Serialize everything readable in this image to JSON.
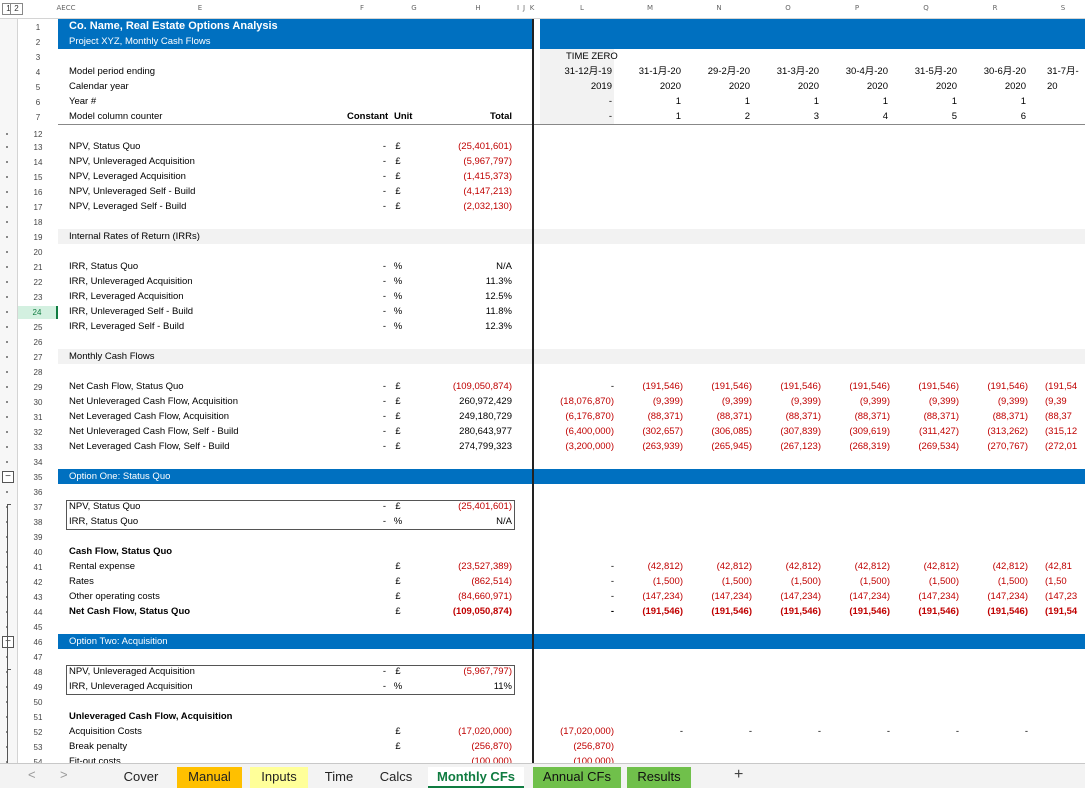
{
  "header": {
    "company": "Co. Name, Real Estate Options Analysis",
    "subtitle": "Project XYZ, Monthly Cash Flows"
  },
  "columns": [
    "AECC",
    "E",
    "F",
    "G",
    "H",
    "I",
    "J",
    "K",
    "L",
    "M",
    "N",
    "O",
    "P",
    "Q",
    "R",
    "S"
  ],
  "outline_levels": [
    "1",
    "2"
  ],
  "timeline": {
    "labels": [
      "Model period ending",
      "Calendar year",
      "Year #",
      "Model column counter"
    ],
    "time_zero": "TIME ZERO",
    "periods": [
      {
        "date": "31-12月-19",
        "year": "2019",
        "yearnum": "-",
        "counter": "-"
      },
      {
        "date": "31-1月-20",
        "year": "2020",
        "yearnum": "1",
        "counter": "1"
      },
      {
        "date": "29-2月-20",
        "year": "2020",
        "yearnum": "1",
        "counter": "2"
      },
      {
        "date": "31-3月-20",
        "year": "2020",
        "yearnum": "1",
        "counter": "3"
      },
      {
        "date": "30-4月-20",
        "year": "2020",
        "yearnum": "1",
        "counter": "4"
      },
      {
        "date": "31-5月-20",
        "year": "2020",
        "yearnum": "1",
        "counter": "5"
      },
      {
        "date": "30-6月-20",
        "year": "2020",
        "yearnum": "1",
        "counter": "6"
      },
      {
        "date": "31-7月-",
        "year": "20",
        "yearnum": "",
        "counter": ""
      }
    ],
    "col_headers": {
      "constant": "Constant",
      "unit": "Unit",
      "total": "Total"
    }
  },
  "rows": [
    {
      "n": "1"
    },
    {
      "n": "2"
    },
    {
      "n": "3"
    },
    {
      "n": "4"
    },
    {
      "n": "5"
    },
    {
      "n": "6"
    },
    {
      "n": "7"
    },
    {
      "n": "12"
    },
    {
      "n": "13",
      "label": "NPV, Status Quo",
      "const": "-",
      "unit": "£",
      "total": "(25,401,601)",
      "neg": true
    },
    {
      "n": "14",
      "label": "NPV, Unleveraged Acquisition",
      "const": "-",
      "unit": "£",
      "total": "(5,967,797)",
      "neg": true
    },
    {
      "n": "15",
      "label": "NPV, Leveraged Acquisition",
      "const": "-",
      "unit": "£",
      "total": "(1,415,373)",
      "neg": true
    },
    {
      "n": "16",
      "label": "NPV, Unleveraged Self - Build",
      "const": "-",
      "unit": "£",
      "total": "(4,147,213)",
      "neg": true
    },
    {
      "n": "17",
      "label": "NPV, Leveraged Self - Build",
      "const": "-",
      "unit": "£",
      "total": "(2,032,130)",
      "neg": true
    },
    {
      "n": "18"
    },
    {
      "n": "19",
      "label": "Internal Rates of Return (IRRs)",
      "section": "grey"
    },
    {
      "n": "20"
    },
    {
      "n": "21",
      "label": "IRR, Status Quo",
      "const": "-",
      "unit": "%",
      "total": "N/A"
    },
    {
      "n": "22",
      "label": "IRR, Unleveraged Acquisition",
      "const": "-",
      "unit": "%",
      "total": "11.3%"
    },
    {
      "n": "23",
      "label": "IRR, Leveraged Acquisition",
      "const": "-",
      "unit": "%",
      "total": "12.5%"
    },
    {
      "n": "24",
      "label": "IRR, Unleveraged Self - Build",
      "const": "-",
      "unit": "%",
      "total": "11.8%",
      "selected": true
    },
    {
      "n": "25",
      "label": "IRR, Leveraged Self - Build",
      "const": "-",
      "unit": "%",
      "total": "12.3%"
    },
    {
      "n": "26"
    },
    {
      "n": "27",
      "label": "Monthly Cash Flows",
      "section": "grey"
    },
    {
      "n": "28"
    },
    {
      "n": "29",
      "label": "Net Cash Flow, Status Quo",
      "const": "-",
      "unit": "£",
      "total": "(109,050,874)",
      "neg": true,
      "vals": [
        "-",
        "(191,546)",
        "(191,546)",
        "(191,546)",
        "(191,546)",
        "(191,546)",
        "(191,546)",
        "(191,54"
      ]
    },
    {
      "n": "30",
      "label": "Net Unleveraged Cash Flow, Acquisition",
      "const": "-",
      "unit": "£",
      "total": "260,972,429",
      "vals": [
        "(18,076,870)",
        "(9,399)",
        "(9,399)",
        "(9,399)",
        "(9,399)",
        "(9,399)",
        "(9,399)",
        "(9,39"
      ]
    },
    {
      "n": "31",
      "label": "Net Leveraged Cash Flow, Acquisition",
      "const": "-",
      "unit": "£",
      "total": "249,180,729",
      "vals": [
        "(6,176,870)",
        "(88,371)",
        "(88,371)",
        "(88,371)",
        "(88,371)",
        "(88,371)",
        "(88,371)",
        "(88,37"
      ]
    },
    {
      "n": "32",
      "label": "Net Unleveraged Cash Flow, Self - Build",
      "const": "-",
      "unit": "£",
      "total": "280,643,977",
      "vals": [
        "(6,400,000)",
        "(302,657)",
        "(306,085)",
        "(307,839)",
        "(309,619)",
        "(311,427)",
        "(313,262)",
        "(315,12"
      ]
    },
    {
      "n": "33",
      "label": "Net Leveraged Cash Flow, Self - Build",
      "const": "-",
      "unit": "£",
      "total": "274,799,323",
      "vals": [
        "(3,200,000)",
        "(263,939)",
        "(265,945)",
        "(267,123)",
        "(268,319)",
        "(269,534)",
        "(270,767)",
        "(272,01"
      ]
    },
    {
      "n": "34"
    },
    {
      "n": "35",
      "label": "Option One: Status Quo",
      "section": "blue"
    },
    {
      "n": "36"
    },
    {
      "n": "37",
      "label": "NPV, Status Quo",
      "const": "-",
      "unit": "£",
      "total": "(25,401,601)",
      "neg": true
    },
    {
      "n": "38",
      "label": "IRR, Status Quo",
      "const": "-",
      "unit": "%",
      "total": "N/A"
    },
    {
      "n": "39"
    },
    {
      "n": "40",
      "label": "Cash Flow, Status Quo",
      "bold": true
    },
    {
      "n": "41",
      "label": "Rental expense",
      "unit": "£",
      "total": "(23,527,389)",
      "neg": true,
      "vals": [
        "-",
        "(42,812)",
        "(42,812)",
        "(42,812)",
        "(42,812)",
        "(42,812)",
        "(42,812)",
        "(42,81"
      ]
    },
    {
      "n": "42",
      "label": "Rates",
      "unit": "£",
      "total": "(862,514)",
      "neg": true,
      "vals": [
        "-",
        "(1,500)",
        "(1,500)",
        "(1,500)",
        "(1,500)",
        "(1,500)",
        "(1,500)",
        "(1,50"
      ]
    },
    {
      "n": "43",
      "label": "Other operating costs",
      "unit": "£",
      "total": "(84,660,971)",
      "neg": true,
      "vals": [
        "-",
        "(147,234)",
        "(147,234)",
        "(147,234)",
        "(147,234)",
        "(147,234)",
        "(147,234)",
        "(147,23"
      ]
    },
    {
      "n": "44",
      "label": "Net Cash Flow, Status Quo",
      "unit": "£",
      "total": "(109,050,874)",
      "neg": true,
      "bold": true,
      "vals": [
        "-",
        "(191,546)",
        "(191,546)",
        "(191,546)",
        "(191,546)",
        "(191,546)",
        "(191,546)",
        "(191,54"
      ]
    },
    {
      "n": "45"
    },
    {
      "n": "46",
      "label": "Option Two: Acquisition",
      "section": "blue"
    },
    {
      "n": "47"
    },
    {
      "n": "48",
      "label": "NPV, Unleveraged Acquisition",
      "const": "-",
      "unit": "£",
      "total": "(5,967,797)",
      "neg": true
    },
    {
      "n": "49",
      "label": "IRR, Unleveraged Acquisition",
      "const": "-",
      "unit": "%",
      "total": "11%"
    },
    {
      "n": "50"
    },
    {
      "n": "51",
      "label": "Unleveraged Cash Flow, Acquisition",
      "bold": true
    },
    {
      "n": "52",
      "label": "Acquisition Costs",
      "unit": "£",
      "total": "(17,020,000)",
      "neg": true,
      "vals": [
        "(17,020,000)",
        "-",
        "-",
        "-",
        "-",
        "-",
        "-",
        ""
      ]
    },
    {
      "n": "53",
      "label": "Break penalty",
      "unit": "£",
      "total": "(256,870)",
      "neg": true,
      "vals": [
        "(256,870)",
        "",
        "",
        "",
        "",
        "",
        "",
        ""
      ]
    },
    {
      "n": "54",
      "label": "Fit-out costs",
      "unit": "",
      "total": "(100,000)",
      "neg": true,
      "vals": [
        "(100,000)",
        "",
        "",
        "",
        "",
        "",
        "",
        ""
      ]
    }
  ],
  "tabs": [
    {
      "label": "Cover",
      "style": "plain"
    },
    {
      "label": "Manual",
      "style": "manual"
    },
    {
      "label": "Inputs",
      "style": "inputs"
    },
    {
      "label": "Time",
      "style": "plain"
    },
    {
      "label": "Calcs",
      "style": "plain"
    },
    {
      "label": "Monthly CFs",
      "style": "active"
    },
    {
      "label": "Annual CFs",
      "style": "green"
    },
    {
      "label": "Results",
      "style": "green"
    }
  ],
  "add_sheet": "+",
  "nav": {
    "prev": "<",
    "next": ">"
  }
}
